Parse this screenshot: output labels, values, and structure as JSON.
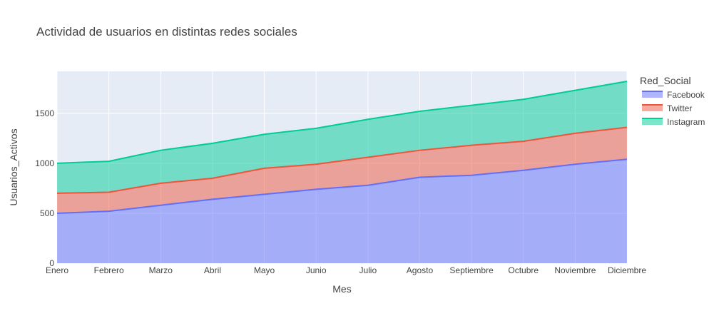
{
  "chart_data": {
    "type": "area",
    "stacked": true,
    "title": "Actividad de usuarios en distintas redes sociales",
    "xlabel": "Mes",
    "ylabel": "Usuarios_Activos",
    "legend_title": "Red_Social",
    "legend_position": "right",
    "grid": true,
    "ylim": [
      0,
      1920
    ],
    "yticks": [
      0,
      500,
      1000,
      1500
    ],
    "categories": [
      "Enero",
      "Febrero",
      "Marzo",
      "Abril",
      "Mayo",
      "Junio",
      "Julio",
      "Agosto",
      "Septiembre",
      "Octubre",
      "Noviembre",
      "Diciembre"
    ],
    "series": [
      {
        "name": "Facebook",
        "color": "#636efa",
        "values": [
          500,
          520,
          580,
          640,
          690,
          740,
          780,
          860,
          880,
          930,
          990,
          1040
        ]
      },
      {
        "name": "Twitter",
        "color": "#ef553b",
        "values": [
          200,
          190,
          220,
          210,
          260,
          250,
          280,
          270,
          300,
          290,
          310,
          320
        ]
      },
      {
        "name": "Instagram",
        "color": "#00cc96",
        "values": [
          300,
          310,
          330,
          350,
          340,
          360,
          380,
          390,
          400,
          420,
          430,
          460
        ]
      }
    ]
  }
}
